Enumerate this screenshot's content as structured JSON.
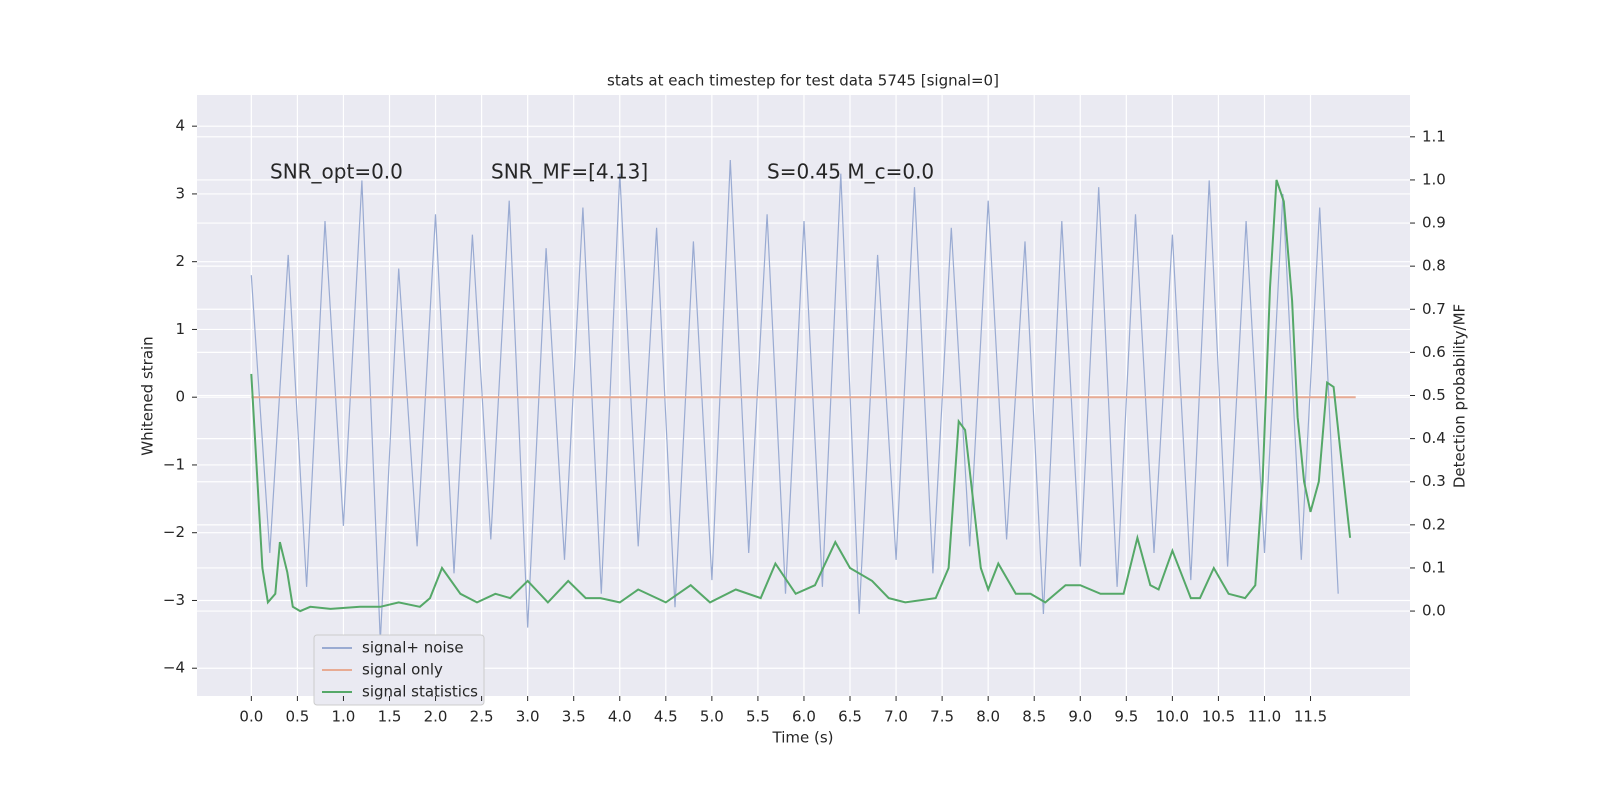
{
  "chart_data": {
    "type": "line",
    "title": "stats at each timestep for test data 5745 [signal=0]",
    "xlabel": "Time (s)",
    "ylabel": "Whitened strain",
    "y2label": "Detection probability/MF",
    "annotations": [
      "SNR_opt=0.0",
      "SNR_MF=[4.13]",
      "S=0.45   M_c=0.0"
    ],
    "xlim": [
      -0.59,
      12.58
    ],
    "ylim": [
      -4.41,
      4.46
    ],
    "y2lim": [
      -0.197,
      1.197
    ],
    "xticks": [
      {
        "value": 0,
        "label": "0.0"
      },
      0.5,
      {
        "value": 1,
        "label": "1.0"
      },
      1.5,
      {
        "value": 2,
        "label": "2.0"
      },
      2.5,
      {
        "value": 3,
        "label": "3.0"
      },
      3.5,
      {
        "value": 4,
        "label": "4.0"
      },
      4.5,
      {
        "value": 5,
        "label": "5.0"
      },
      5.5,
      {
        "value": 6,
        "label": "6.0"
      },
      6.5,
      {
        "value": 7,
        "label": "7.0"
      },
      7.5,
      {
        "value": 8,
        "label": "8.0"
      },
      8.5,
      {
        "value": 9,
        "label": "9.0"
      },
      9.5,
      {
        "value": 10,
        "label": "10.0"
      },
      10.5,
      {
        "value": 11,
        "label": "11.0"
      },
      11.5
    ],
    "yticks": [
      {
        "value": -4,
        "label": "−4"
      },
      {
        "value": -3,
        "label": "−3"
      },
      {
        "value": -2,
        "label": "−2"
      },
      {
        "value": -1,
        "label": "−1"
      },
      0,
      1,
      2,
      3,
      4
    ],
    "y2ticks": [
      {
        "value": 0,
        "label": "0.0"
      },
      0.1,
      0.2,
      0.3,
      0.4,
      0.5,
      0.6,
      0.7,
      0.8,
      0.9,
      {
        "value": 1,
        "label": "1.0"
      },
      1.1
    ],
    "grid": true,
    "legend": "lower left",
    "series": [
      {
        "name": "signal+ noise",
        "color": "#9aabd2",
        "x": [
          0,
          0.2,
          0.4,
          0.6,
          0.8,
          1,
          1.2,
          1.4,
          1.6,
          1.8,
          2,
          2.2,
          2.4,
          2.6,
          2.8,
          3,
          3.2,
          3.4,
          3.6,
          3.8,
          4,
          4.2,
          4.4,
          4.6,
          4.8,
          5,
          5.2,
          5.4,
          5.6,
          5.8,
          6,
          6.2,
          6.4,
          6.6,
          6.8,
          7,
          7.2,
          7.4,
          7.6,
          7.8,
          8,
          8.2,
          8.4,
          8.6,
          8.8,
          9,
          9.2,
          9.4,
          9.6,
          9.8,
          10,
          10.2,
          10.4,
          10.6,
          10.8,
          11,
          11.2,
          11.4,
          11.6,
          11.8
        ],
        "values": [
          1.8,
          -2.3,
          2.1,
          -2.8,
          2.6,
          -1.9,
          3.2,
          -3.6,
          1.9,
          -2.2,
          2.7,
          -2.6,
          2.4,
          -2.1,
          2.9,
          -3.4,
          2.2,
          -2.4,
          2.8,
          -2.9,
          3.3,
          -2.2,
          2.5,
          -3.1,
          2.3,
          -2.7,
          3.5,
          -2.3,
          2.7,
          -2.9,
          2.6,
          -2.8,
          3.3,
          -3.2,
          2.1,
          -2.4,
          3.1,
          -2.6,
          2.5,
          -2.2,
          2.9,
          -2.1,
          2.3,
          -3.2,
          2.6,
          -2.5,
          3.1,
          -2.8,
          2.7,
          -2.3,
          2.4,
          -2.7,
          3.2,
          -2.5,
          2.6,
          -2.3,
          3.0,
          -2.4,
          2.8,
          -2.9
        ]
      },
      {
        "name": "signal only",
        "color": "#e8ab93",
        "x": [
          0,
          11.99
        ],
        "values": [
          0,
          0
        ]
      },
      {
        "name": "signal statistics",
        "color": "#55a868",
        "axis": "y2",
        "x": [
          0,
          0.12,
          0.18,
          0.26,
          0.31,
          0.39,
          0.45,
          0.53,
          0.64,
          0.86,
          1.18,
          1.4,
          1.6,
          1.83,
          1.94,
          2.07,
          2.27,
          2.45,
          2.65,
          2.81,
          3.0,
          3.22,
          3.44,
          3.63,
          3.79,
          4.0,
          4.2,
          4.5,
          4.77,
          4.98,
          5.26,
          5.53,
          5.69,
          5.91,
          6.12,
          6.34,
          6.5,
          6.74,
          6.92,
          7.1,
          7.43,
          7.57,
          7.68,
          7.75,
          7.92,
          8.0,
          8.11,
          8.3,
          8.46,
          8.62,
          8.84,
          9.0,
          9.22,
          9.38,
          9.47,
          9.62,
          9.76,
          9.85,
          10.0,
          10.2,
          10.3,
          10.45,
          10.61,
          10.79,
          10.9,
          10.98,
          11.06,
          11.13,
          11.21,
          11.3,
          11.36,
          11.43,
          11.5,
          11.59,
          11.68,
          11.75,
          11.82,
          11.93
        ],
        "values": [
          0.55,
          0.1,
          0.02,
          0.04,
          0.16,
          0.09,
          0.01,
          0.0,
          0.01,
          0.005,
          0.01,
          0.01,
          0.02,
          0.01,
          0.03,
          0.1,
          0.04,
          0.02,
          0.04,
          0.03,
          0.07,
          0.02,
          0.07,
          0.03,
          0.03,
          0.02,
          0.05,
          0.02,
          0.06,
          0.02,
          0.05,
          0.03,
          0.11,
          0.04,
          0.06,
          0.16,
          0.1,
          0.07,
          0.03,
          0.02,
          0.03,
          0.1,
          0.44,
          0.42,
          0.1,
          0.05,
          0.11,
          0.04,
          0.04,
          0.02,
          0.06,
          0.06,
          0.04,
          0.04,
          0.04,
          0.17,
          0.06,
          0.05,
          0.14,
          0.03,
          0.03,
          0.1,
          0.04,
          0.03,
          0.06,
          0.3,
          0.75,
          1.0,
          0.95,
          0.72,
          0.45,
          0.3,
          0.23,
          0.3,
          0.53,
          0.52,
          0.38,
          0.17
        ]
      }
    ]
  }
}
